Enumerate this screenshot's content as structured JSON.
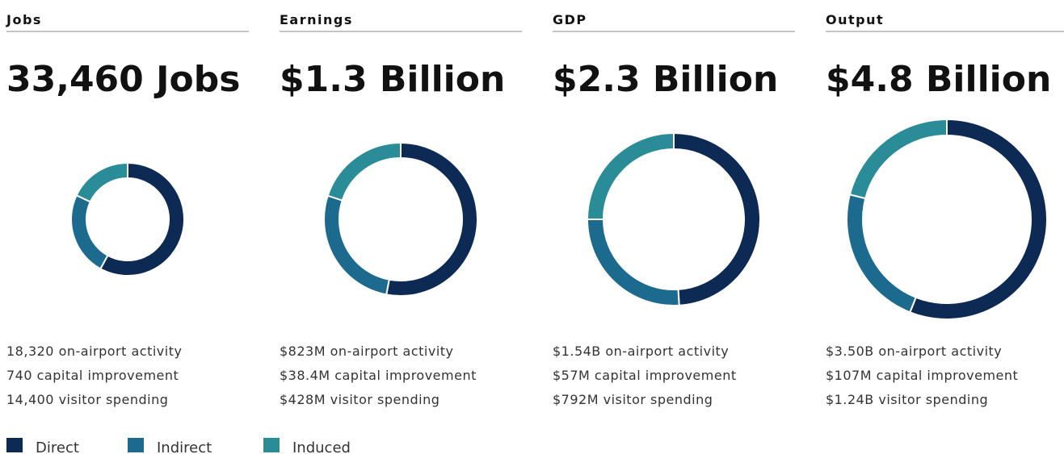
{
  "chart_data": [
    {
      "type": "donut",
      "title": "Jobs",
      "subtitle": "33,460 Jobs",
      "categories": [
        "Direct",
        "Indirect",
        "Induced"
      ],
      "colors": [
        "#0d2a54",
        "#1c6b8f",
        "#2a8c96"
      ],
      "values": [
        58,
        24,
        18
      ],
      "notes": [
        "18,320 on-airport activity",
        "740 capital improvement",
        "14,400 visitor spending"
      ]
    },
    {
      "type": "donut",
      "title": "Earnings",
      "subtitle": "$1.3 Billion",
      "categories": [
        "Direct",
        "Indirect",
        "Induced"
      ],
      "colors": [
        "#0d2a54",
        "#1c6b8f",
        "#2a8c96"
      ],
      "values": [
        53,
        27,
        20
      ],
      "notes": [
        "$823M on-airport activity",
        "$38.4M capital improvement",
        "$428M visitor spending"
      ]
    },
    {
      "type": "donut",
      "title": "GDP",
      "subtitle": "$2.3 Billion",
      "categories": [
        "Direct",
        "Indirect",
        "Induced"
      ],
      "colors": [
        "#0d2a54",
        "#1c6b8f",
        "#2a8c96"
      ],
      "values": [
        49,
        26,
        25
      ],
      "notes": [
        "$1.54B on-airport activity",
        "$57M capital improvement",
        "$792M visitor spending"
      ]
    },
    {
      "type": "donut",
      "title": "Output",
      "subtitle": "$4.8 Billion",
      "categories": [
        "Direct",
        "Indirect",
        "Induced"
      ],
      "colors": [
        "#0d2a54",
        "#1c6b8f",
        "#2a8c96"
      ],
      "values": [
        56,
        23,
        21
      ],
      "notes": [
        "$3.50B on-airport activity",
        "$107M capital improvement",
        "$1.24B visitor spending"
      ]
    }
  ]
}
